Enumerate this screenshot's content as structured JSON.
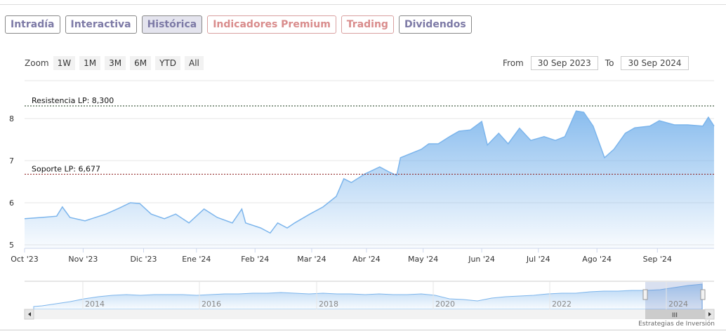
{
  "tabs": [
    "Intradía",
    "Interactiva",
    "Histórica",
    "Indicadores Premium",
    "Trading",
    "Dividendos"
  ],
  "zoom": {
    "label": "Zoom",
    "buttons": [
      "1W",
      "1M",
      "3M",
      "6M",
      "YTD",
      "All"
    ]
  },
  "range": {
    "from_label": "From",
    "from": "30 Sep 2023",
    "to_label": "To",
    "to": "30 Sep 2024"
  },
  "credit": "Estrategias de Inversión",
  "navigator": {
    "years": [
      "2014",
      "2016",
      "2018",
      "2020",
      "2022",
      "2024"
    ]
  },
  "chart_data": {
    "type": "area",
    "xlabel": "",
    "ylabel": "",
    "x_unit": "days since 1 Oct 2023",
    "xlim": [
      0,
      365
    ],
    "ylim": [
      4.9,
      8.9
    ],
    "yticks": [
      5,
      6,
      7,
      8
    ],
    "xticks": [
      {
        "d": 0,
        "label": "Oct '23"
      },
      {
        "d": 31,
        "label": "Nov '23"
      },
      {
        "d": 63,
        "label": "Dic '23"
      },
      {
        "d": 91,
        "label": "Ene '24"
      },
      {
        "d": 122,
        "label": "Feb '24"
      },
      {
        "d": 152,
        "label": "Mar '24"
      },
      {
        "d": 181,
        "label": "Abr '24"
      },
      {
        "d": 211,
        "label": "May '24"
      },
      {
        "d": 242,
        "label": "Jun '24"
      },
      {
        "d": 272,
        "label": "Jul '24"
      },
      {
        "d": 303,
        "label": "Ago '24"
      },
      {
        "d": 335,
        "label": "Sep '24"
      }
    ],
    "lines": [
      {
        "label": "Resistencia LP: 8,300",
        "value": 8.3
      },
      {
        "label": "Soporte LP: 6,677",
        "value": 6.677
      }
    ],
    "points": [
      [
        0,
        5.62
      ],
      [
        9,
        5.65
      ],
      [
        17,
        5.68
      ],
      [
        20,
        5.9
      ],
      [
        24,
        5.65
      ],
      [
        32,
        5.57
      ],
      [
        43,
        5.73
      ],
      [
        50,
        5.87
      ],
      [
        56,
        6.0
      ],
      [
        61,
        5.98
      ],
      [
        67,
        5.73
      ],
      [
        74,
        5.62
      ],
      [
        80,
        5.73
      ],
      [
        87,
        5.52
      ],
      [
        95,
        5.85
      ],
      [
        102,
        5.65
      ],
      [
        110,
        5.52
      ],
      [
        115,
        5.85
      ],
      [
        117,
        5.52
      ],
      [
        125,
        5.4
      ],
      [
        130,
        5.28
      ],
      [
        134,
        5.52
      ],
      [
        139,
        5.4
      ],
      [
        143,
        5.52
      ],
      [
        151,
        5.73
      ],
      [
        158,
        5.9
      ],
      [
        165,
        6.15
      ],
      [
        169,
        6.57
      ],
      [
        173,
        6.48
      ],
      [
        180,
        6.68
      ],
      [
        188,
        6.85
      ],
      [
        193,
        6.73
      ],
      [
        197,
        6.65
      ],
      [
        199,
        7.07
      ],
      [
        210,
        7.27
      ],
      [
        214,
        7.4
      ],
      [
        219,
        7.4
      ],
      [
        225,
        7.57
      ],
      [
        230,
        7.7
      ],
      [
        236,
        7.73
      ],
      [
        242,
        7.93
      ],
      [
        245,
        7.37
      ],
      [
        251,
        7.65
      ],
      [
        256,
        7.4
      ],
      [
        262,
        7.77
      ],
      [
        268,
        7.48
      ],
      [
        275,
        7.57
      ],
      [
        281,
        7.48
      ],
      [
        286,
        7.57
      ],
      [
        292,
        8.18
      ],
      [
        296,
        8.15
      ],
      [
        301,
        7.82
      ],
      [
        307,
        7.07
      ],
      [
        312,
        7.27
      ],
      [
        318,
        7.65
      ],
      [
        323,
        7.78
      ],
      [
        331,
        7.82
      ],
      [
        336,
        7.95
      ],
      [
        344,
        7.85
      ],
      [
        351,
        7.85
      ],
      [
        359,
        7.82
      ],
      [
        362,
        8.03
      ],
      [
        365,
        7.82
      ]
    ]
  }
}
